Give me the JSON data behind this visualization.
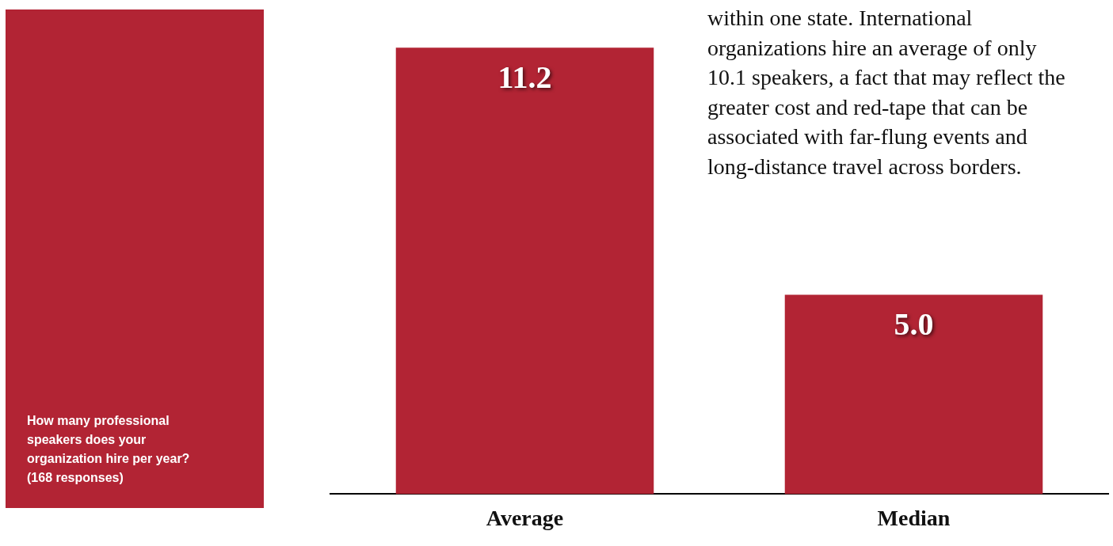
{
  "chart_data": {
    "type": "bar",
    "categories": [
      "Average",
      "Median"
    ],
    "values": [
      11.2,
      5.0
    ],
    "value_labels": [
      "11.2",
      "5.0"
    ],
    "color": "#b22434",
    "annotations": [
      "How many professional speakers does your organization hire per year? (168 responses)",
      "within one state. International organizations hire an average of only 10.1 speakers, a fact that may reflect the greater cost and red-tape that can be associated with far-flung events and long-distance travel across borders."
    ]
  }
}
